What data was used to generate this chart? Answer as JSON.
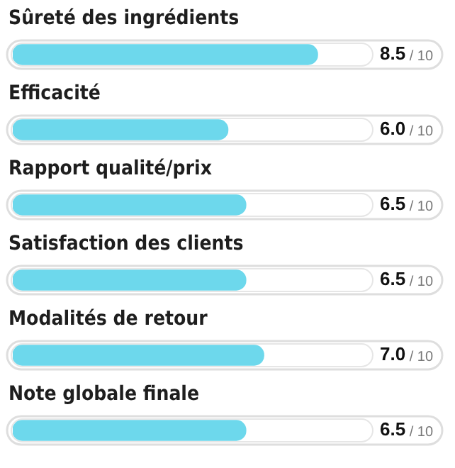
{
  "chart_data": {
    "type": "bar",
    "orientation": "horizontal",
    "categories": [
      "Sûreté des ingrédients",
      "Efficacité",
      "Rapport qualité/prix",
      "Satisfaction des clients",
      "Modalités de retour",
      "Note globale finale"
    ],
    "values": [
      8.5,
      6.0,
      6.5,
      6.5,
      7.0,
      6.5
    ],
    "value_labels": [
      "8.5",
      "6.0",
      "6.5",
      "6.5",
      "7.0",
      "6.5"
    ],
    "annotations": [
      "/ 10",
      "/ 10",
      "/ 10",
      "/ 10",
      "/ 10",
      "/ 10"
    ],
    "color": "#6dd8ec",
    "xlim": [
      0,
      10
    ],
    "legend": false,
    "tick_labels": "y"
  }
}
